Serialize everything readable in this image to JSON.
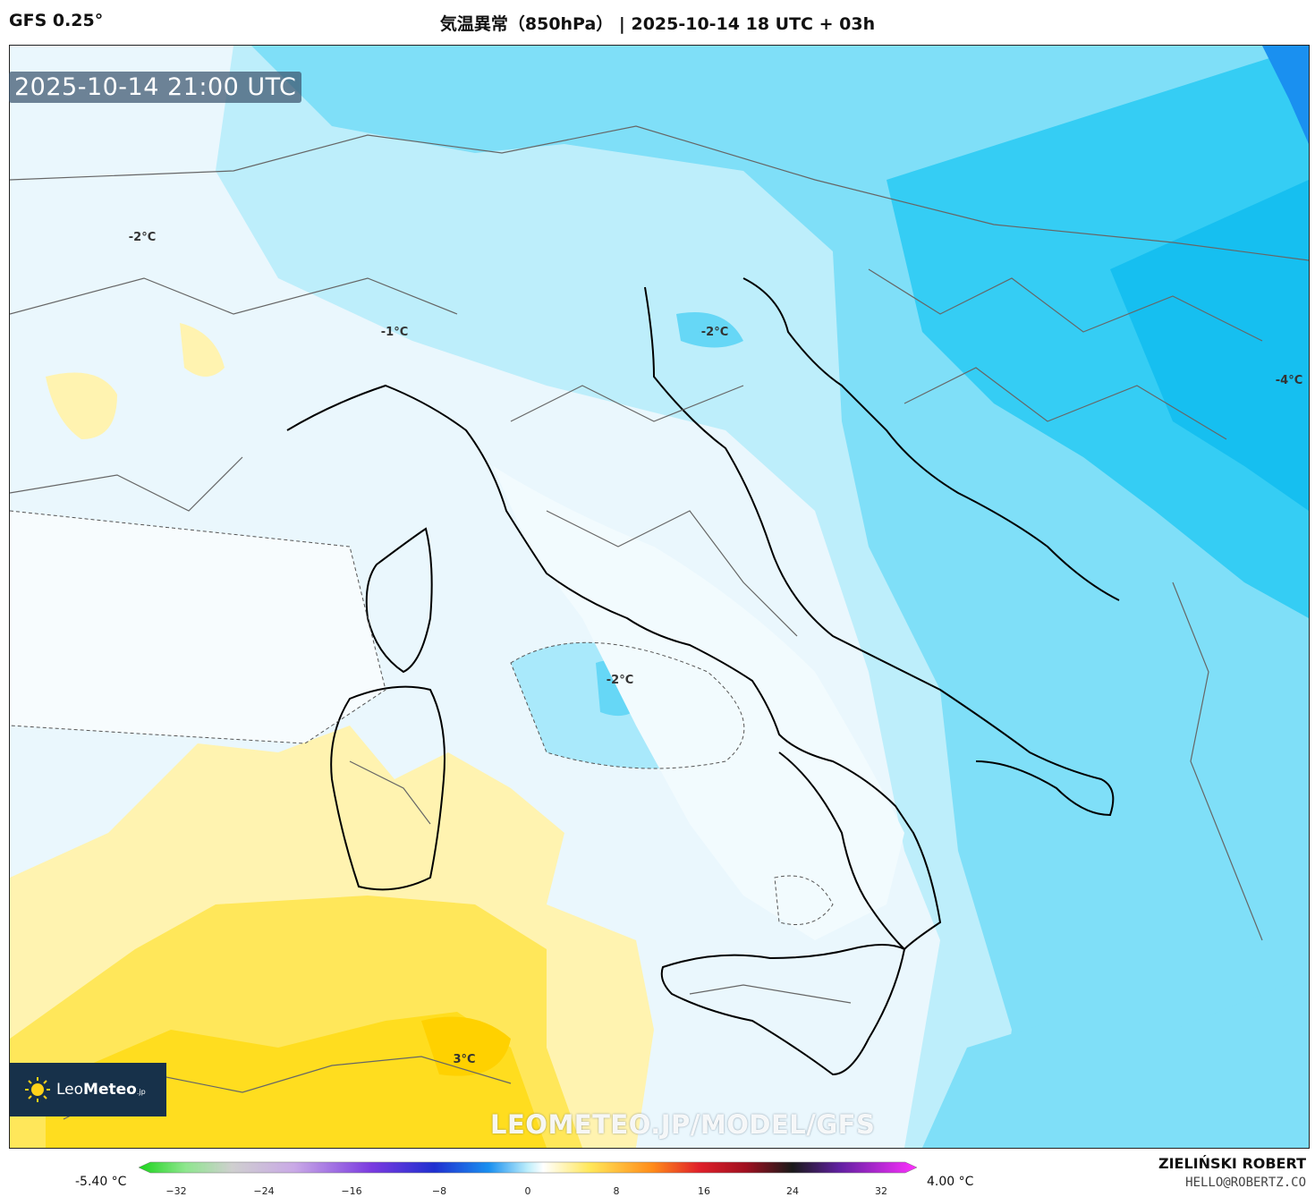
{
  "header": {
    "model": "GFS 0.25°",
    "title": "気温異常（850hPa） | 2025-10-14 18 UTC + 03h"
  },
  "map": {
    "valid_time": "2025-10-14 21:00 UTC",
    "contour_labels": [
      {
        "text": "-2°C"
      },
      {
        "text": "-1°C"
      },
      {
        "text": "-2°C"
      },
      {
        "text": "-4°C"
      },
      {
        "text": "-2°C"
      },
      {
        "text": "3°C"
      }
    ],
    "watermark": "LEOMETEO.JP/MODEL/GFS",
    "logo_icon": "sun-icon",
    "logo_brand_light": "Leo",
    "logo_brand_bold": "Meteo",
    "logo_brand_suffix": ".jp"
  },
  "colorbar": {
    "min_label": "-5.40 °C",
    "max_label": "4.00 °C",
    "ticks": [
      "−32",
      "−24",
      "−16",
      "−8",
      "0",
      "8",
      "16",
      "24",
      "32"
    ]
  },
  "credit": {
    "name": "ZIELIŃSKI ROBERT",
    "email": "HELLO@ROBERTZ.CO"
  }
}
